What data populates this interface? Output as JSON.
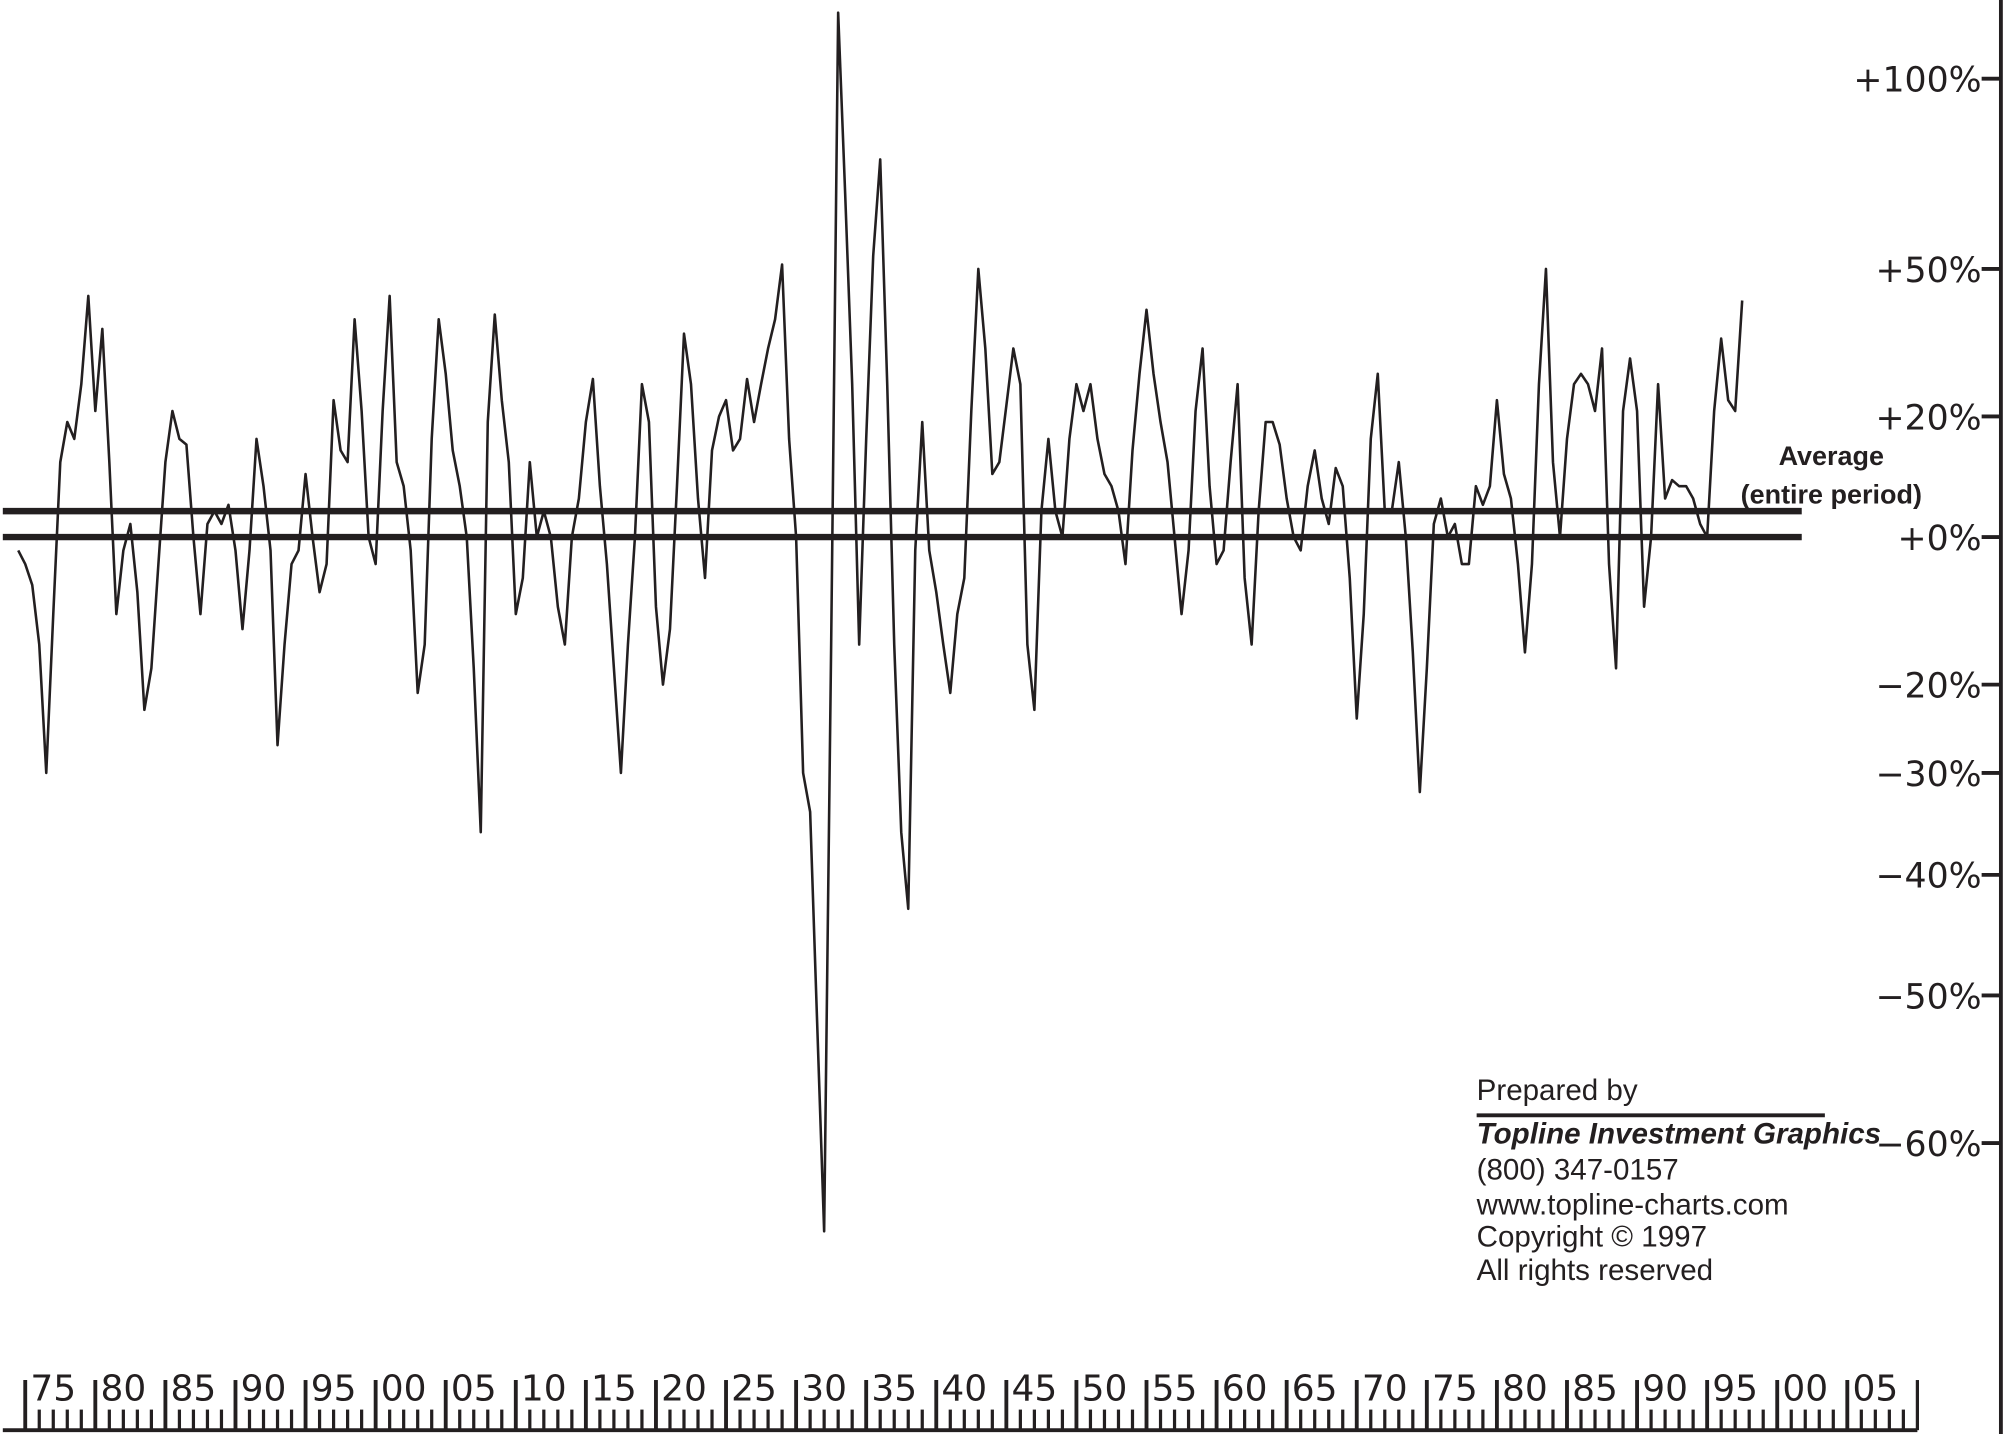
{
  "chart_data": {
    "type": "line",
    "yscale": "log",
    "color": "#231f20",
    "x": [
      1874.5,
      1875,
      1875.5,
      1876,
      1876.5,
      1877,
      1877.5,
      1878,
      1878.5,
      1879,
      1879.5,
      1880,
      1880.5,
      1881,
      1881.5,
      1882,
      1882.5,
      1883,
      1883.5,
      1884,
      1884.5,
      1885,
      1885.5,
      1886,
      1886.5,
      1887,
      1887.5,
      1888,
      1888.5,
      1889,
      1889.5,
      1890,
      1890.5,
      1891,
      1891.5,
      1892,
      1892.5,
      1893,
      1893.5,
      1894,
      1894.5,
      1895,
      1895.5,
      1896,
      1896.5,
      1897,
      1897.5,
      1898,
      1898.5,
      1899,
      1899.5,
      1900,
      1900.5,
      1901,
      1901.5,
      1902,
      1902.5,
      1903,
      1903.5,
      1904,
      1904.5,
      1905,
      1905.5,
      1906,
      1906.5,
      1907,
      1907.5,
      1908,
      1908.5,
      1909,
      1909.5,
      1910,
      1910.5,
      1911,
      1911.5,
      1912,
      1912.5,
      1913,
      1913.5,
      1914,
      1914.5,
      1915,
      1915.5,
      1916,
      1916.5,
      1917,
      1917.5,
      1918,
      1918.5,
      1919,
      1919.5,
      1920,
      1920.5,
      1921,
      1921.5,
      1922,
      1922.5,
      1923,
      1923.5,
      1924,
      1924.5,
      1925,
      1925.5,
      1926,
      1926.5,
      1927,
      1927.5,
      1928,
      1928.5,
      1929,
      1929.5,
      1930,
      1930.5,
      1931,
      1931.5,
      1932,
      1932.5,
      1933,
      1933.5,
      1934,
      1934.5,
      1935,
      1935.5,
      1936,
      1936.5,
      1937,
      1937.5,
      1938,
      1938.5,
      1939,
      1939.5,
      1940,
      1940.5,
      1941,
      1941.5,
      1942,
      1942.5,
      1943,
      1943.5,
      1944,
      1944.5,
      1945,
      1945.5,
      1946,
      1946.5,
      1947,
      1947.5,
      1948,
      1948.5,
      1949,
      1949.5,
      1950,
      1950.5,
      1951,
      1951.5,
      1952,
      1952.5,
      1953,
      1953.5,
      1954,
      1954.5,
      1955,
      1955.5,
      1956,
      1956.5,
      1957,
      1957.5,
      1958,
      1958.5,
      1959,
      1959.5,
      1960,
      1960.5,
      1961,
      1961.5,
      1962,
      1962.5,
      1963,
      1963.5,
      1964,
      1964.5,
      1965,
      1965.5,
      1966,
      1966.5,
      1967,
      1967.5,
      1968,
      1968.5,
      1969,
      1969.5,
      1970,
      1970.5,
      1971,
      1971.5,
      1972,
      1972.5,
      1973,
      1973.5,
      1974,
      1974.5,
      1975,
      1975.5,
      1976,
      1976.5,
      1977,
      1977.5,
      1978,
      1978.5,
      1979,
      1979.5,
      1980,
      1980.5,
      1981,
      1981.5,
      1982,
      1982.5,
      1983,
      1983.5,
      1984,
      1984.5,
      1985,
      1985.5,
      1986,
      1986.5,
      1987,
      1987.5,
      1988,
      1988.5,
      1989,
      1989.5,
      1990,
      1990.5,
      1991,
      1991.5,
      1992,
      1992.5,
      1993,
      1993.5,
      1994,
      1994.5,
      1995,
      1995.5,
      1996,
      1996.5,
      1997,
      1997.5
    ],
    "values": [
      -2,
      -4,
      -7,
      -15,
      -30,
      -11,
      12,
      19,
      16,
      26,
      44,
      21,
      37,
      12,
      -11,
      -2,
      2,
      -8,
      -23,
      -18,
      -4,
      12,
      21,
      16,
      15,
      0,
      -11,
      2,
      4,
      2,
      5,
      -2,
      -13,
      -2,
      16,
      8,
      -2,
      -27,
      -15,
      -4,
      -2,
      10,
      0,
      -8,
      -4,
      23,
      14,
      12,
      39,
      21,
      0,
      -4,
      21,
      44,
      12,
      8,
      -2,
      -21,
      -15,
      16,
      39,
      28,
      14,
      8,
      0,
      -18,
      -36,
      19,
      40,
      23,
      12,
      -11,
      -6,
      12,
      0,
      4,
      0,
      -10,
      -15,
      0,
      6,
      19,
      27,
      8,
      -4,
      -18,
      -30,
      -15,
      0,
      26,
      19,
      -10,
      -20,
      -13,
      8,
      36,
      26,
      6,
      -6,
      14,
      20,
      23,
      14,
      16,
      27,
      19,
      26,
      33,
      39,
      51,
      16,
      0,
      -30,
      -34,
      -52,
      -65,
      -15,
      121,
      68,
      26,
      -15,
      16,
      53,
      77,
      26,
      -15,
      -36,
      -43,
      -2,
      19,
      -2,
      -8,
      -15,
      -21,
      -11,
      -6,
      21,
      50,
      33,
      10,
      12,
      22,
      33,
      26,
      -15,
      -23,
      4,
      16,
      4,
      0,
      16,
      26,
      21,
      26,
      16,
      10,
      8,
      4,
      -4,
      14,
      28,
      41,
      28,
      19,
      12,
      0,
      -11,
      -2,
      21,
      33,
      8,
      -4,
      -2,
      12,
      26,
      -6,
      -15,
      4,
      19,
      19,
      15,
      6,
      0,
      -2,
      8,
      14,
      6,
      2,
      11,
      8,
      -6,
      -24,
      -11,
      16,
      28,
      4,
      4,
      12,
      0,
      -16,
      -32,
      -18,
      2,
      6,
      0,
      2,
      -4,
      -4,
      8,
      5,
      8,
      23,
      10,
      6,
      -4,
      -16,
      -4,
      26,
      50,
      12,
      0,
      16,
      26,
      28,
      26,
      21,
      33,
      -4,
      -18,
      21,
      31,
      21,
      -10,
      0,
      26,
      6,
      9,
      8,
      8,
      6,
      2,
      0,
      21,
      35,
      23,
      21,
      43
    ],
    "average": 4,
    "annotations": [
      "Average",
      "(entire period)"
    ],
    "credits": [
      "Prepared by",
      "Topline Investment Graphics",
      "(800) 347-0157",
      "www.topline-charts.com",
      "Copyright © 1997",
      "All rights reserved"
    ],
    "xlim": [
      1873.4,
      2010
    ],
    "xticks": [
      {
        "value": 1875,
        "label": "75"
      },
      {
        "value": 1880,
        "label": "80"
      },
      {
        "value": 1885,
        "label": "85"
      },
      {
        "value": 1890,
        "label": "90"
      },
      {
        "value": 1895,
        "label": "95"
      },
      {
        "value": 1900,
        "label": "00"
      },
      {
        "value": 1905,
        "label": "05"
      },
      {
        "value": 1910,
        "label": "10"
      },
      {
        "value": 1915,
        "label": "15"
      },
      {
        "value": 1920,
        "label": "20"
      },
      {
        "value": 1925,
        "label": "25"
      },
      {
        "value": 1930,
        "label": "30"
      },
      {
        "value": 1935,
        "label": "35"
      },
      {
        "value": 1940,
        "label": "40"
      },
      {
        "value": 1945,
        "label": "45"
      },
      {
        "value": 1950,
        "label": "50"
      },
      {
        "value": 1955,
        "label": "55"
      },
      {
        "value": 1960,
        "label": "60"
      },
      {
        "value": 1965,
        "label": "65"
      },
      {
        "value": 1970,
        "label": "70"
      },
      {
        "value": 1975,
        "label": "75"
      },
      {
        "value": 1980,
        "label": "80"
      },
      {
        "value": 1985,
        "label": "85"
      },
      {
        "value": 1990,
        "label": "90"
      },
      {
        "value": 1995,
        "label": "95"
      },
      {
        "value": 2000,
        "label": "00"
      },
      {
        "value": 2005,
        "label": "05"
      }
    ],
    "ylim": [
      -70,
      125
    ],
    "yticks": [
      {
        "value": 100,
        "label": "+100%"
      },
      {
        "value": 50,
        "label": "+50%"
      },
      {
        "value": 20,
        "label": "+20%"
      },
      {
        "value": 0,
        "label": "+0%"
      },
      {
        "value": -20,
        "label": "−20%"
      },
      {
        "value": -30,
        "label": "−30%"
      },
      {
        "value": -40,
        "label": "−40%"
      },
      {
        "value": -50,
        "label": "−50%"
      },
      {
        "value": -60,
        "label": "−60%"
      }
    ]
  }
}
